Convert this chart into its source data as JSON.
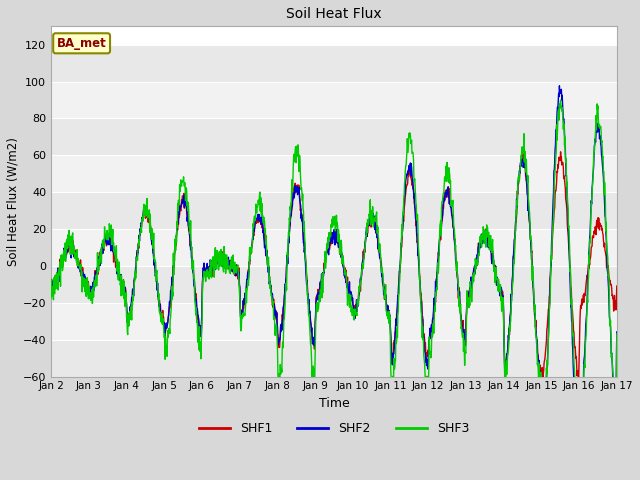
{
  "title": "Soil Heat Flux",
  "xlabel": "Time",
  "ylabel": "Soil Heat Flux (W/m2)",
  "ylim": [
    -60,
    130
  ],
  "yticks": [
    -60,
    -40,
    -20,
    0,
    20,
    40,
    60,
    80,
    100,
    120
  ],
  "xlim": [
    0,
    15
  ],
  "xtick_labels": [
    "Jan 2",
    "Jan 3",
    "Jan 4",
    "Jan 5",
    "Jan 6",
    "Jan 7",
    "Jan 8",
    "Jan 9",
    "Jan 10",
    "Jan 11",
    "Jan 12",
    "Jan 13",
    "Jan 14",
    "Jan 15",
    "Jan 16",
    "Jan 17"
  ],
  "colors": {
    "SHF1": "#cc0000",
    "SHF2": "#0000cc",
    "SHF3": "#00cc00"
  },
  "line_width": 1.0,
  "bg_color": "#d8d8d8",
  "plot_bg_color": "#ffffff",
  "band_color_light": "#e8e8e8",
  "band_color_white": "#f8f8f8",
  "legend_label": "BA_met",
  "legend_bg": "#ffffcc",
  "legend_border": "#888800"
}
